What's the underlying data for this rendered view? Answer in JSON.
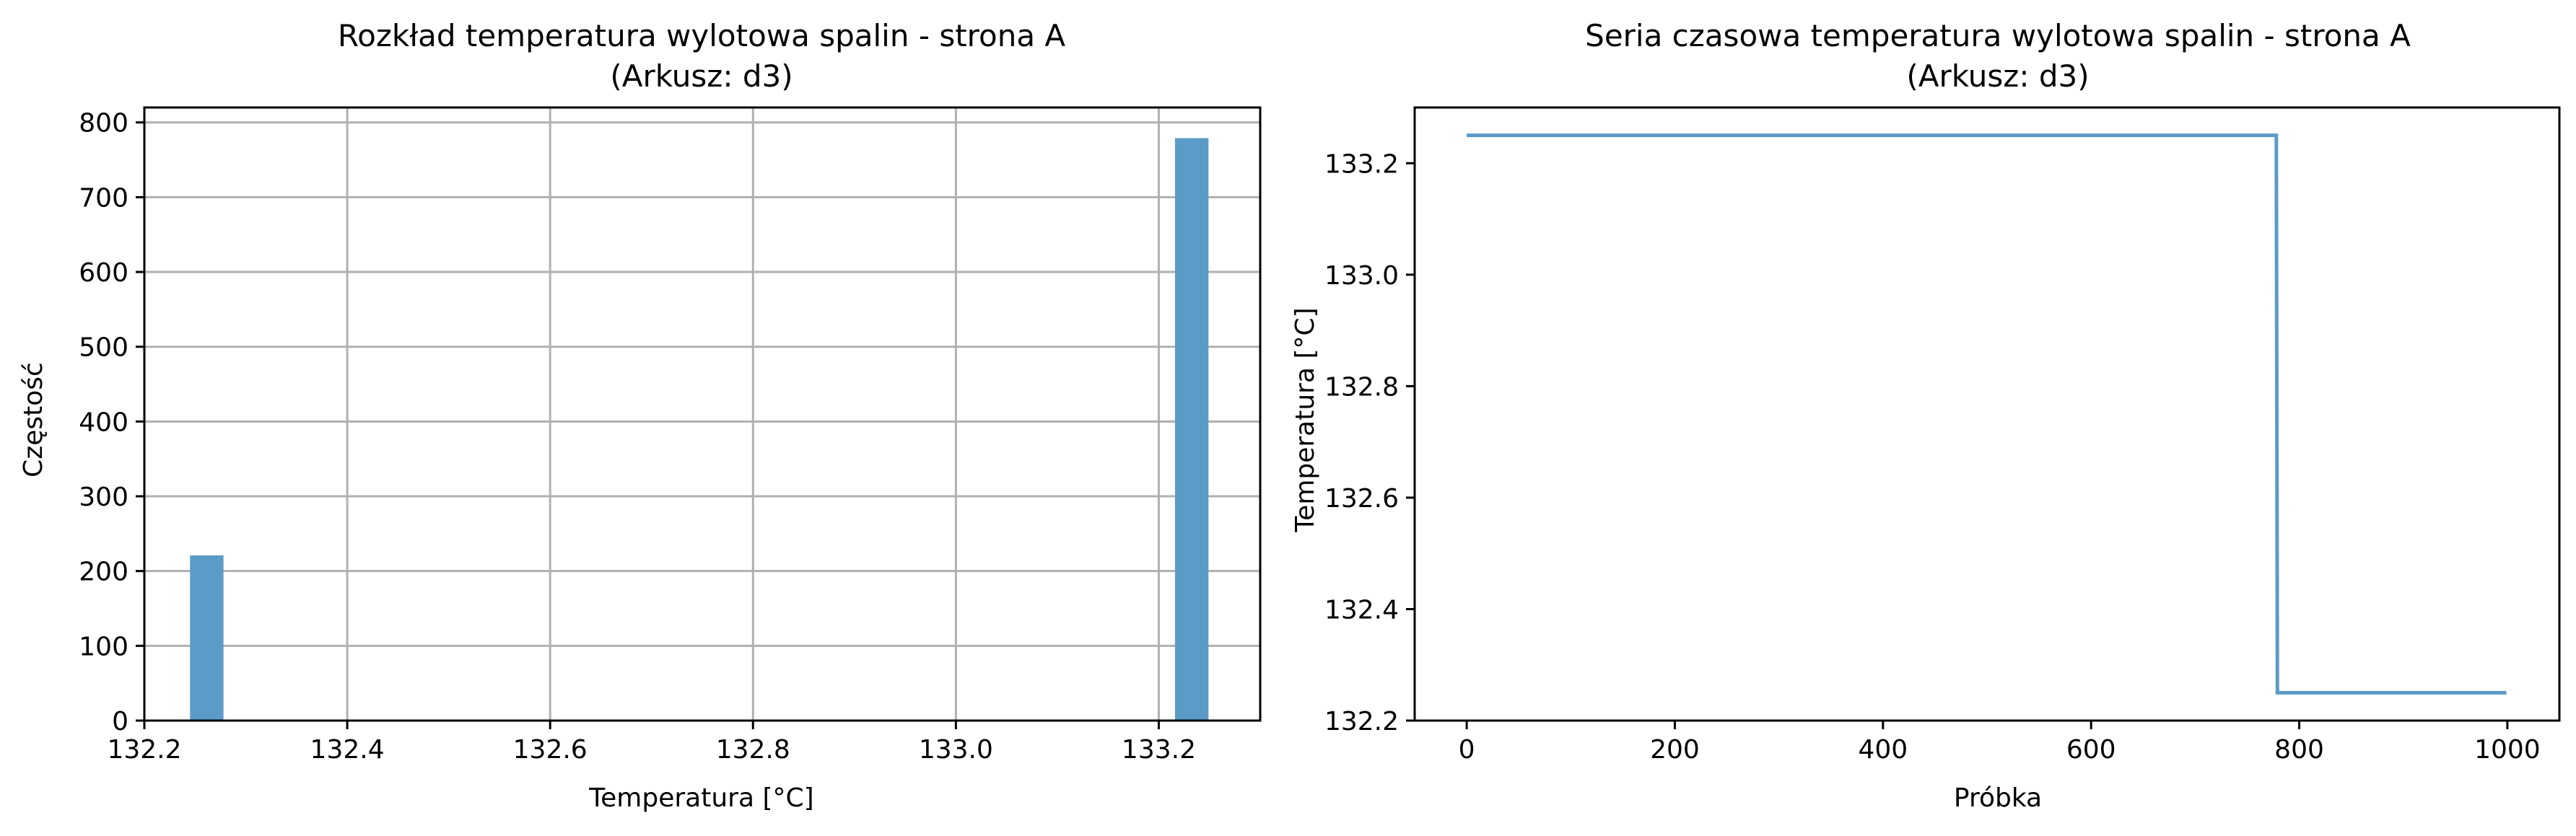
{
  "colors": {
    "bar": "#5b9bc8",
    "line": "#5b9bc8",
    "grid": "#b0b0b0",
    "axes": "#000000",
    "background": "#ffffff"
  },
  "chart_data": [
    {
      "type": "bar",
      "title": "Rozkład temperatura wylotowa spalin - strona A",
      "subtitle": "(Arkusz: d3)",
      "xlabel": "Temperatura [°C]",
      "ylabel": "Częstość",
      "xlim": [
        132.2,
        133.3
      ],
      "ylim": [
        0,
        820
      ],
      "grid": true,
      "xticks": [
        132.2,
        132.4,
        132.6,
        132.8,
        133.0,
        133.2
      ],
      "xtick_labels": [
        "132.2",
        "132.4",
        "132.6",
        "132.8",
        "133.0",
        "133.2"
      ],
      "yticks": [
        0,
        100,
        200,
        300,
        400,
        500,
        600,
        700,
        800
      ],
      "ytick_labels": [
        "0",
        "100",
        "200",
        "300",
        "400",
        "500",
        "600",
        "700",
        "800"
      ],
      "bins": [
        {
          "x0": 132.245,
          "x1": 132.278,
          "count": 221
        },
        {
          "x0": 133.216,
          "x1": 133.249,
          "count": 779
        }
      ]
    },
    {
      "type": "line",
      "title": "Seria czasowa temperatura wylotowa spalin - strona A",
      "subtitle": "(Arkusz: d3)",
      "xlabel": "Próbka",
      "ylabel": "Temperatura [°C]",
      "xlim": [
        -50,
        1050
      ],
      "ylim": [
        132.2,
        133.3
      ],
      "grid": false,
      "xticks": [
        0,
        200,
        400,
        600,
        800,
        1000
      ],
      "xtick_labels": [
        "0",
        "200",
        "400",
        "600",
        "800",
        "1000"
      ],
      "yticks": [
        132.2,
        132.4,
        132.6,
        132.8,
        133.0,
        133.2
      ],
      "ytick_labels": [
        "132.2",
        "132.4",
        "132.6",
        "132.8",
        "133.0",
        "133.2"
      ],
      "series": [
        {
          "x": [
            0,
            778,
            779,
            999
          ],
          "y": [
            133.25,
            133.25,
            132.25,
            132.25
          ]
        }
      ]
    }
  ]
}
